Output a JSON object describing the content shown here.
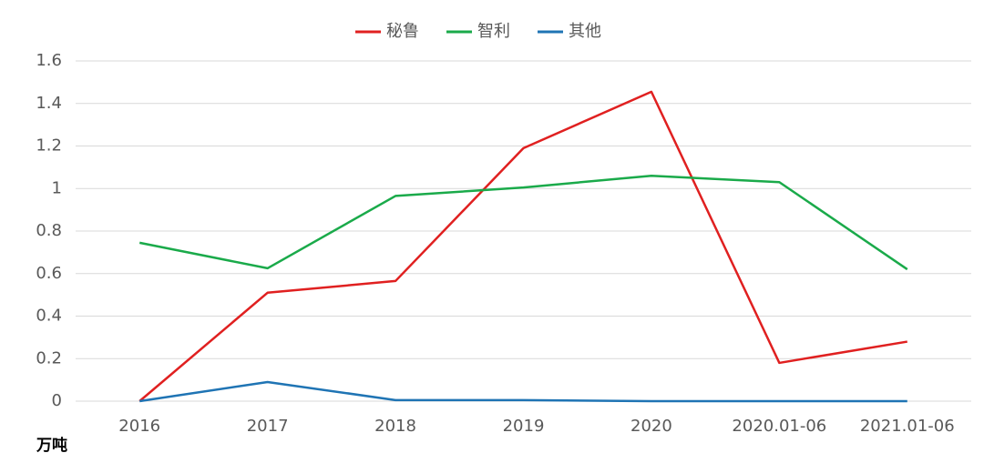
{
  "chart_data": {
    "type": "line",
    "y_label": "万吨",
    "categories": [
      "2016",
      "2017",
      "2018",
      "2019",
      "2020",
      "2020.01-06",
      "2021.01-06"
    ],
    "series": [
      {
        "name": "秘鲁",
        "color": "#e02020",
        "values": [
          0,
          0.51,
          0.565,
          1.19,
          1.455,
          0.18,
          0.28
        ]
      },
      {
        "name": "智利",
        "color": "#1aaa4a",
        "values": [
          0.745,
          0.625,
          0.965,
          1.005,
          1.06,
          1.03,
          0.62
        ]
      },
      {
        "name": "其他",
        "color": "#1f74b4",
        "values": [
          0,
          0.09,
          0.005,
          0.005,
          0,
          0,
          0
        ]
      }
    ],
    "ylim": [
      0,
      1.6
    ],
    "yticks": [
      0,
      0.2,
      0.4,
      0.6,
      0.8,
      1,
      1.2,
      1.4,
      1.6
    ],
    "grid": true,
    "legend": "top"
  }
}
